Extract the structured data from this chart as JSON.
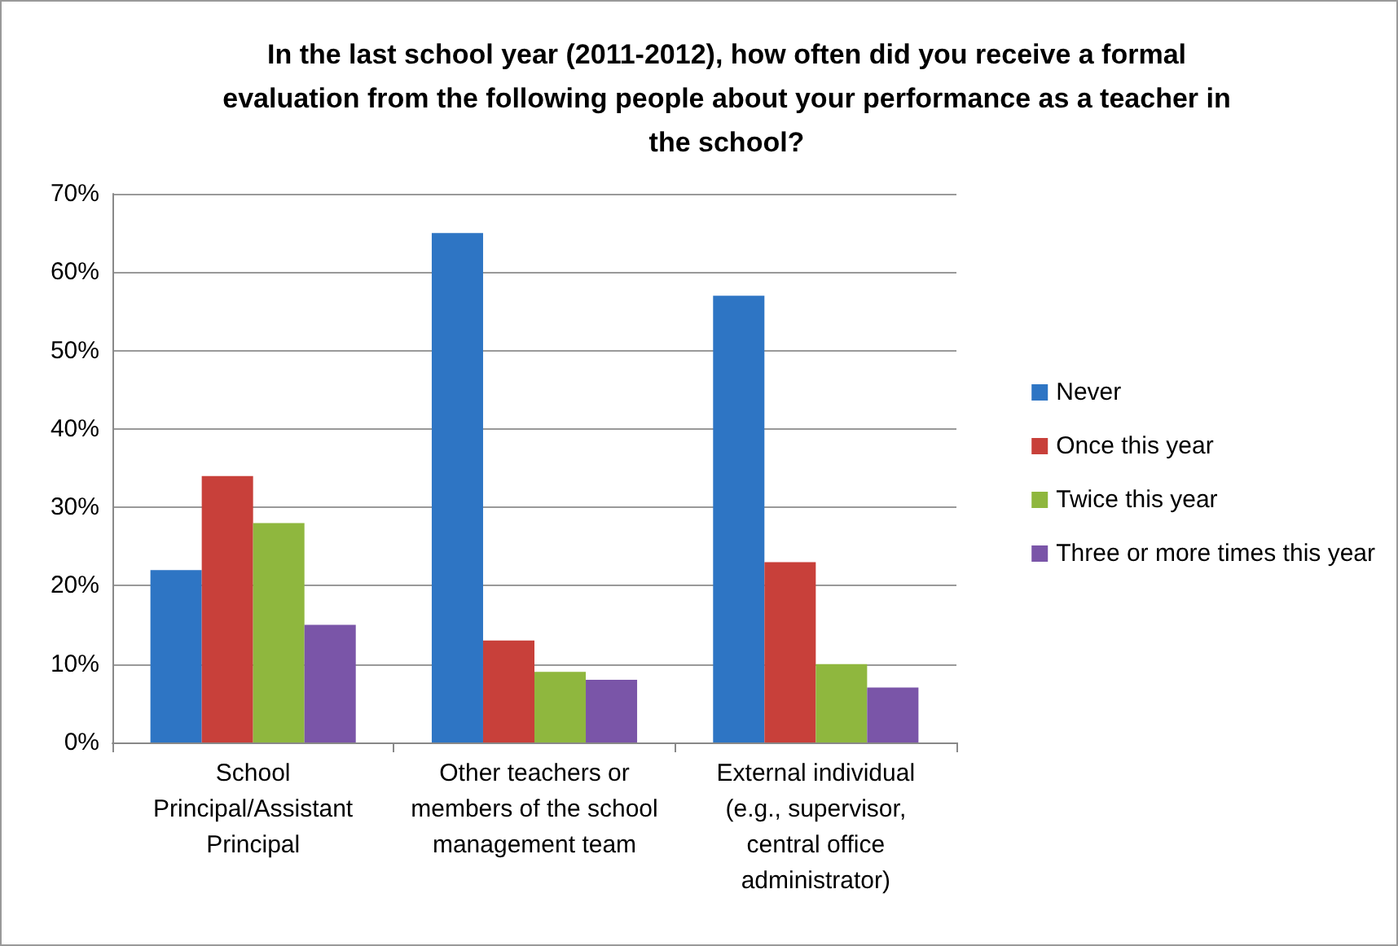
{
  "chart_data": {
    "type": "bar",
    "title": "In the last school year (2011-2012), how often did you receive a formal evaluation from the following people about your performance as a teacher in the school?",
    "categories": [
      "School Principal/Assistant Principal",
      "Other teachers or members of the school management team",
      "External individual (e.g., supervisor, central office administrator)"
    ],
    "series": [
      {
        "name": "Never",
        "color": "#2e75c4",
        "values": [
          22,
          65,
          57
        ]
      },
      {
        "name": "Once this year",
        "color": "#c8403a",
        "values": [
          34,
          13,
          23
        ]
      },
      {
        "name": "Twice this year",
        "color": "#8fb73e",
        "values": [
          28,
          9,
          10
        ]
      },
      {
        "name": "Three or more times this year",
        "color": "#7a55a8",
        "values": [
          15,
          8,
          7
        ]
      }
    ],
    "ylim": [
      0,
      70
    ],
    "yticks": [
      {
        "value": 0,
        "label": "0%"
      },
      {
        "value": 10,
        "label": "10%"
      },
      {
        "value": 20,
        "label": "20%"
      },
      {
        "value": 30,
        "label": "30%"
      },
      {
        "value": 40,
        "label": "40%"
      },
      {
        "value": 50,
        "label": "50%"
      },
      {
        "value": 60,
        "label": "60%"
      },
      {
        "value": 70,
        "label": "70%"
      }
    ],
    "grid": "y",
    "legend": "right"
  }
}
